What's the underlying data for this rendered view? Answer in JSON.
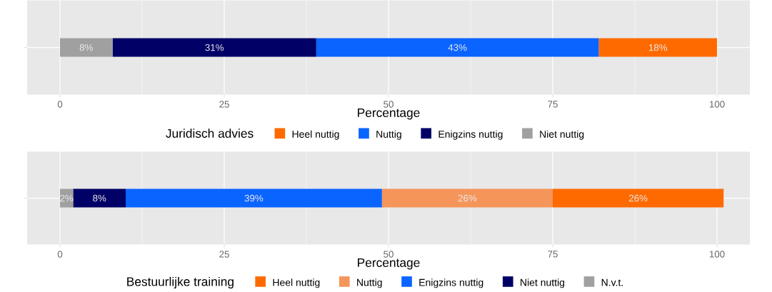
{
  "chart_data": [
    {
      "type": "bar",
      "orientation": "horizontal",
      "stacked": true,
      "categories": [
        null
      ],
      "xlabel": "Percentage",
      "legend_title": "Juridisch advies",
      "legend": "bottom",
      "grid": true,
      "tick_labels": "x",
      "xlim": [
        -5,
        105
      ],
      "xticks": [
        0,
        25,
        50,
        75,
        100
      ],
      "series": [
        {
          "name": "Niet nuttig",
          "color": "#a0a0a0",
          "values": [
            8
          ],
          "value_labels": [
            "8%"
          ]
        },
        {
          "name": "Enigzins nuttig",
          "color": "#000066",
          "values": [
            31
          ],
          "value_labels": [
            "31%"
          ]
        },
        {
          "name": "Nuttig",
          "color": "#0a64ff",
          "values": [
            43
          ],
          "value_labels": [
            "43%"
          ]
        },
        {
          "name": "Heel nuttig",
          "color": "#ff6a00",
          "values": [
            18
          ],
          "value_labels": [
            "18%"
          ]
        }
      ]
    },
    {
      "type": "bar",
      "orientation": "horizontal",
      "stacked": true,
      "categories": [
        null
      ],
      "xlabel": "Percentage",
      "legend_title": "Bestuurlijke training",
      "legend": "bottom",
      "grid": true,
      "tick_labels": "x",
      "xlim": [
        -5,
        105
      ],
      "xticks": [
        0,
        25,
        50,
        75,
        100
      ],
      "series": [
        {
          "name": "N.v.t.",
          "color": "#a0a0a0",
          "values": [
            2
          ],
          "value_labels": [
            "2%"
          ]
        },
        {
          "name": "Niet nuttig",
          "color": "#000066",
          "values": [
            8
          ],
          "value_labels": [
            "8%"
          ]
        },
        {
          "name": "Enigzins nuttig",
          "color": "#0a64ff",
          "values": [
            39
          ],
          "value_labels": [
            "39%"
          ]
        },
        {
          "name": "Nuttig",
          "color": "#f5955a",
          "values": [
            26
          ],
          "value_labels": [
            "26%"
          ]
        },
        {
          "name": "Heel nuttig",
          "color": "#ff6a00",
          "values": [
            26
          ],
          "value_labels": [
            "26%"
          ]
        }
      ]
    }
  ]
}
